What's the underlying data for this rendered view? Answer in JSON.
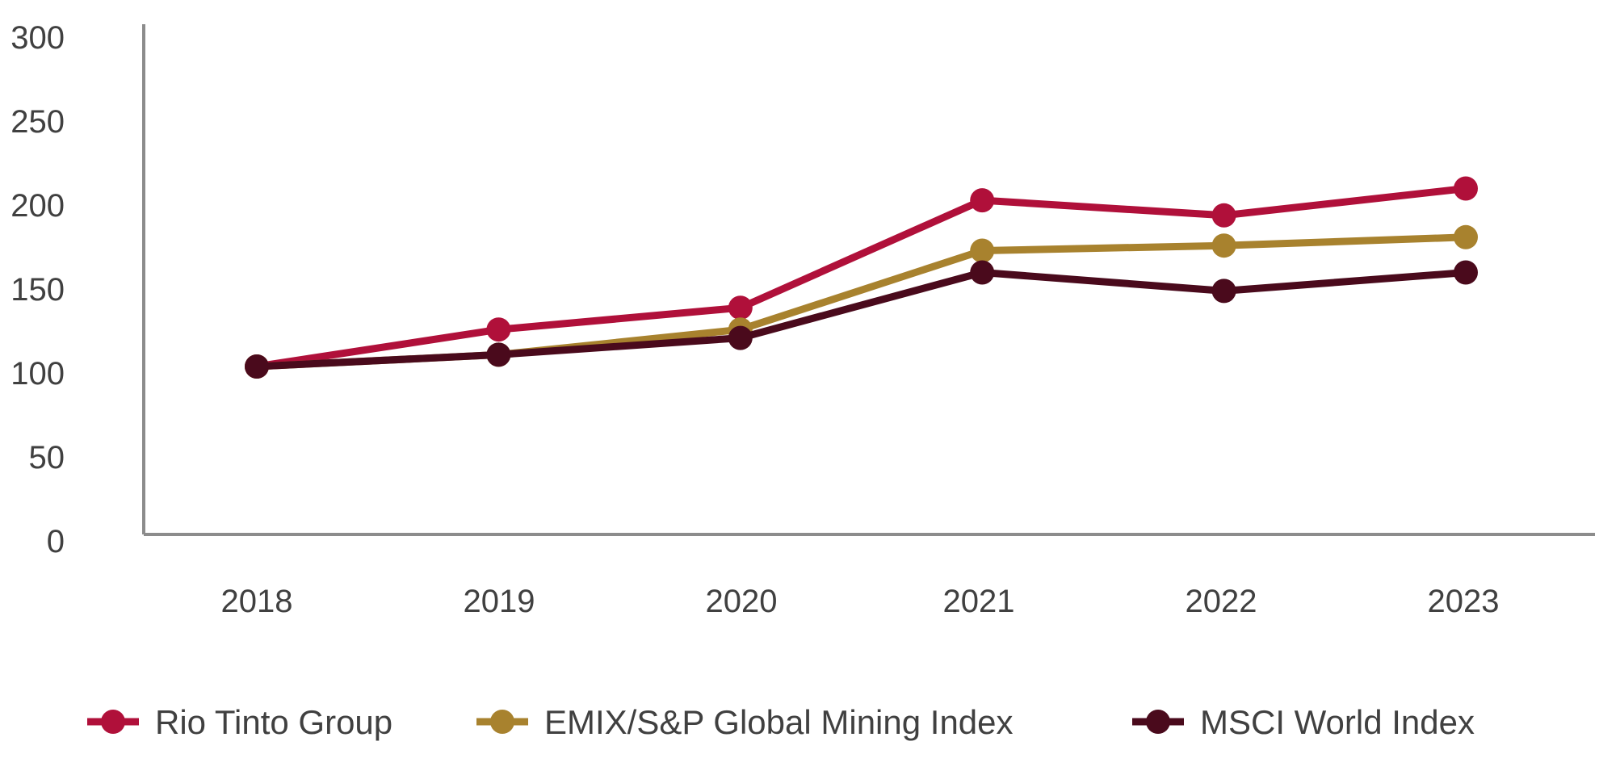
{
  "chart_data": {
    "type": "line",
    "title": "",
    "xlabel": "",
    "ylabel": "",
    "x": [
      "2018",
      "2019",
      "2020",
      "2021",
      "2022",
      "2023"
    ],
    "y_ticks": [
      "0",
      "50",
      "100",
      "150",
      "200",
      "250",
      "300"
    ],
    "ylim": [
      0,
      300
    ],
    "grid": false,
    "legend_position": "bottom",
    "series": [
      {
        "name": "Rio Tinto Group",
        "color": "#B0103A",
        "values": [
          100,
          122,
          135,
          199,
          190,
          206
        ]
      },
      {
        "name": "EMIX/S&P Global Mining Index",
        "color": "#A8822E",
        "values": [
          100,
          107,
          122,
          169,
          172,
          177
        ]
      },
      {
        "name": "MSCI World Index",
        "color": "#4A0A1C",
        "values": [
          100,
          107,
          117,
          156,
          145,
          156
        ]
      }
    ]
  }
}
